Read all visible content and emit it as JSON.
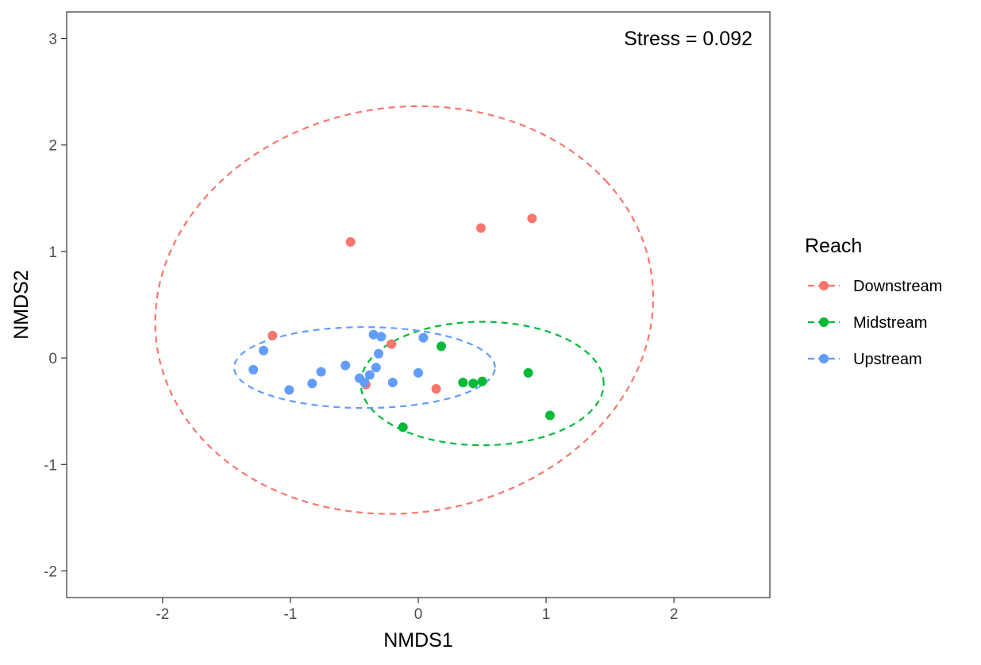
{
  "chart_data": {
    "type": "scatter",
    "xlabel": "NMDS1",
    "ylabel": "NMDS2",
    "xlim": [
      -2.75,
      2.75
    ],
    "ylim": [
      -2.25,
      3.25
    ],
    "xticks": [
      -2,
      -1,
      0,
      1,
      2
    ],
    "yticks": [
      -2,
      -1,
      0,
      1,
      2,
      3
    ],
    "x_tick_labels": [
      "-2",
      "-1",
      "0",
      "1",
      "2"
    ],
    "y_tick_labels": [
      "-2",
      "-1",
      "0",
      "1",
      "2",
      "3"
    ],
    "grid": false,
    "annotation": "Stress =  0.092",
    "legend": {
      "title": "Reach",
      "position": "right"
    },
    "series": [
      {
        "name": "Downstream",
        "color": "#F8766D",
        "points": [
          [
            -1.14,
            0.21
          ],
          [
            -0.53,
            1.09
          ],
          [
            0.49,
            1.22
          ],
          [
            0.89,
            1.31
          ],
          [
            -0.21,
            0.13
          ],
          [
            0.14,
            -0.29
          ],
          [
            -0.41,
            -0.25
          ]
        ],
        "ellipse": {
          "cx": -0.11,
          "cy": 0.45,
          "rx": 1.99,
          "ry": 1.87,
          "angle_deg": 37
        }
      },
      {
        "name": "Midstream",
        "color": "#00BA38",
        "points": [
          [
            0.18,
            0.11
          ],
          [
            0.35,
            -0.23
          ],
          [
            0.43,
            -0.24
          ],
          [
            0.5,
            -0.22
          ],
          [
            0.86,
            -0.14
          ],
          [
            1.03,
            -0.54
          ],
          [
            -0.12,
            -0.65
          ]
        ],
        "ellipse": {
          "cx": 0.5,
          "cy": -0.24,
          "rx": 0.95,
          "ry": 0.58,
          "angle_deg": 0
        }
      },
      {
        "name": "Upstream",
        "color": "#619CFF",
        "points": [
          [
            -1.29,
            -0.11
          ],
          [
            -1.21,
            0.07
          ],
          [
            -1.01,
            -0.3
          ],
          [
            -0.83,
            -0.24
          ],
          [
            -0.76,
            -0.13
          ],
          [
            -0.57,
            -0.07
          ],
          [
            -0.46,
            -0.19
          ],
          [
            -0.42,
            -0.23
          ],
          [
            -0.38,
            -0.16
          ],
          [
            -0.35,
            0.22
          ],
          [
            -0.33,
            -0.09
          ],
          [
            -0.31,
            0.04
          ],
          [
            -0.29,
            0.2
          ],
          [
            -0.2,
            -0.23
          ],
          [
            0.0,
            -0.14
          ],
          [
            0.04,
            0.19
          ]
        ],
        "ellipse": {
          "cx": -0.42,
          "cy": -0.09,
          "rx": 1.02,
          "ry": 0.38,
          "angle_deg": 0
        }
      }
    ]
  }
}
